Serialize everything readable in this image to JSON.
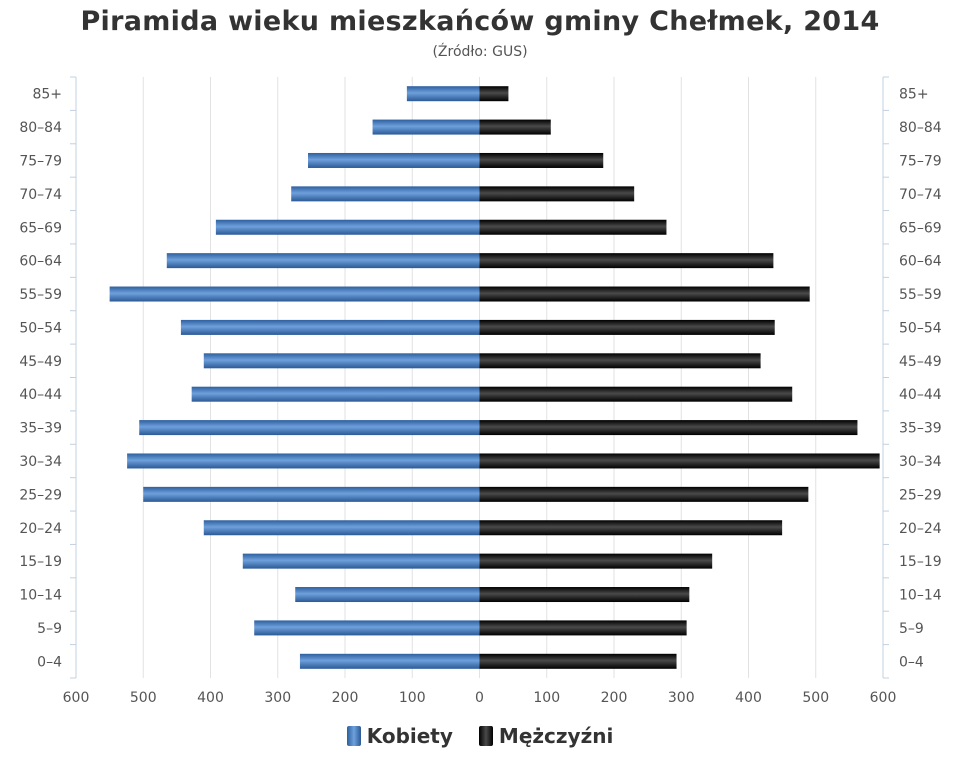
{
  "chart_data": {
    "type": "bar",
    "orientation": "horizontal-pyramid",
    "title": "Piramida wieku mieszkańców gminy Chełmek, 2014",
    "subtitle": "(Źródło: GUS)",
    "categories": [
      "0–4",
      "5–9",
      "10–14",
      "15–19",
      "20–24",
      "25–29",
      "30–34",
      "35–39",
      "40–44",
      "45–49",
      "50–54",
      "55–59",
      "60–64",
      "65–69",
      "70–74",
      "75–79",
      "80–84",
      "85+"
    ],
    "series": [
      {
        "name": "Kobiety",
        "color": "#4a7fbf",
        "values": [
          267,
          335,
          274,
          352,
          410,
          500,
          524,
          506,
          428,
          410,
          444,
          550,
          465,
          392,
          280,
          255,
          159,
          108
        ]
      },
      {
        "name": "Mężczyźni",
        "color": "#1a1a1a",
        "values": [
          293,
          308,
          312,
          346,
          450,
          489,
          595,
          562,
          465,
          418,
          439,
          491,
          437,
          278,
          230,
          184,
          106,
          43
        ]
      }
    ],
    "xlim": [
      -600,
      600
    ],
    "x_ticks": [
      "600",
      "500",
      "400",
      "300",
      "200",
      "100",
      "0",
      "100",
      "200",
      "300",
      "400",
      "500",
      "600"
    ],
    "grid": true,
    "legend_position": "bottom-center"
  }
}
